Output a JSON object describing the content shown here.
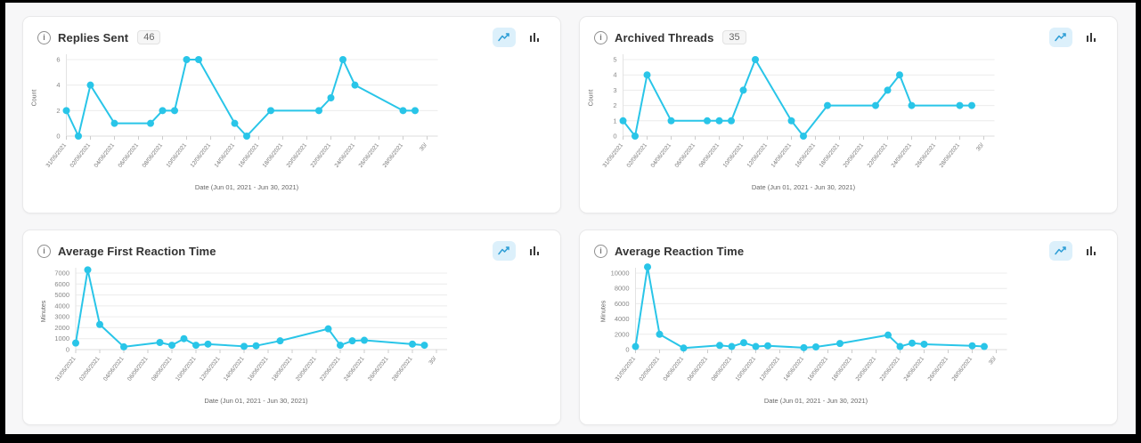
{
  "colors": {
    "line": "#29c5e8",
    "selected_toggle_bg": "#dcf0fb",
    "toggle_line_icon": "#2e9ed6",
    "toggle_bar_icon": "#3a3a3a",
    "panel_bg": "#ffffff",
    "page_bg": "#f7f7f8"
  },
  "icons": {
    "info_glyph": "i"
  },
  "chart_data": [
    {
      "type": "line",
      "title": "Replies Sent",
      "total": "46",
      "ylabel": "Count",
      "xlabel": "Date (Jun 01, 2021 - Jun 30, 2021)",
      "y_ticks": [
        0,
        2,
        4,
        6
      ],
      "ylim": [
        0,
        6
      ],
      "x_tick_labels": [
        "31/05/2021",
        "02/06/2021",
        "04/06/2021",
        "06/06/2021",
        "08/06/2021",
        "10/06/2021",
        "12/06/2021",
        "14/06/2021",
        "16/06/2021",
        "18/06/2021",
        "20/06/2021",
        "22/06/2021",
        "24/06/2021",
        "26/06/2021",
        "28/06/2021",
        "30/06/2021"
      ],
      "points": {
        "dates": [
          "31/05/2021",
          "01/06/2021",
          "02/06/2021",
          "04/06/2021",
          "07/06/2021",
          "08/06/2021",
          "09/06/2021",
          "10/06/2021",
          "11/06/2021",
          "14/06/2021",
          "15/06/2021",
          "17/06/2021",
          "21/06/2021",
          "22/06/2021",
          "23/06/2021",
          "24/06/2021",
          "28/06/2021",
          "29/06/2021"
        ],
        "days": [
          0,
          1,
          2,
          4,
          7,
          8,
          9,
          10,
          11,
          14,
          15,
          17,
          21,
          22,
          23,
          24,
          28,
          29
        ],
        "values": [
          2,
          0,
          4,
          1,
          1,
          2,
          2,
          6,
          6,
          1,
          0,
          2,
          2,
          3,
          6,
          4,
          2,
          2
        ]
      },
      "legend": "none",
      "grid": "horizontal"
    },
    {
      "type": "line",
      "title": "Archived Threads",
      "total": "35",
      "ylabel": "Count",
      "xlabel": "Date (Jun 01, 2021 - Jun 30, 2021)",
      "y_ticks": [
        0,
        1,
        2,
        3,
        4,
        5
      ],
      "ylim": [
        0,
        5
      ],
      "x_tick_labels": [
        "31/05/2021",
        "02/06/2021",
        "04/06/2021",
        "06/06/2021",
        "08/06/2021",
        "10/06/2021",
        "12/06/2021",
        "14/06/2021",
        "16/06/2021",
        "18/06/2021",
        "20/06/2021",
        "22/06/2021",
        "24/06/2021",
        "26/06/2021",
        "28/06/2021",
        "30/06/2021"
      ],
      "points": {
        "dates": [
          "31/05/2021",
          "01/06/2021",
          "02/06/2021",
          "04/06/2021",
          "07/06/2021",
          "08/06/2021",
          "09/06/2021",
          "10/06/2021",
          "11/06/2021",
          "14/06/2021",
          "15/06/2021",
          "17/06/2021",
          "21/06/2021",
          "22/06/2021",
          "23/06/2021",
          "24/06/2021",
          "28/06/2021",
          "29/06/2021"
        ],
        "days": [
          0,
          1,
          2,
          4,
          7,
          8,
          9,
          10,
          11,
          14,
          15,
          17,
          21,
          22,
          23,
          24,
          28,
          29
        ],
        "values": [
          1,
          0,
          4,
          1,
          1,
          1,
          1,
          3,
          5,
          1,
          0,
          2,
          2,
          3,
          4,
          2,
          2,
          2
        ]
      },
      "legend": "none",
      "grid": "horizontal"
    },
    {
      "type": "line",
      "title": "Average First Reaction Time",
      "total": "",
      "ylabel": "Minutes",
      "xlabel": "Date (Jun 01, 2021 - Jun 30, 2021)",
      "y_ticks": [
        0,
        1000,
        2000,
        3000,
        4000,
        5000,
        6000,
        7000
      ],
      "ylim": [
        0,
        7300
      ],
      "x_tick_labels": [
        "31/05/2021",
        "02/06/2021",
        "04/06/2021",
        "06/06/2021",
        "08/06/2021",
        "10/06/2021",
        "12/06/2021",
        "14/06/2021",
        "16/06/2021",
        "18/06/2021",
        "20/06/2021",
        "22/06/2021",
        "24/06/2021",
        "26/06/2021",
        "28/06/2021",
        "30/06/2021"
      ],
      "points": {
        "dates": [
          "31/05/2021",
          "01/06/2021",
          "02/06/2021",
          "04/06/2021",
          "07/06/2021",
          "08/06/2021",
          "09/06/2021",
          "10/06/2021",
          "11/06/2021",
          "14/06/2021",
          "15/06/2021",
          "17/06/2021",
          "21/06/2021",
          "22/06/2021",
          "23/06/2021",
          "24/06/2021",
          "28/06/2021",
          "29/06/2021"
        ],
        "days": [
          0,
          1,
          2,
          4,
          7,
          8,
          9,
          10,
          11,
          14,
          15,
          17,
          21,
          22,
          23,
          24,
          28,
          29
        ],
        "values": [
          600,
          7300,
          2300,
          250,
          650,
          400,
          1000,
          400,
          500,
          300,
          350,
          800,
          1900,
          400,
          800,
          850,
          500,
          400
        ]
      },
      "legend": "none",
      "grid": "horizontal"
    },
    {
      "type": "line",
      "title": "Average Reaction Time",
      "total": "",
      "ylabel": "Minutes",
      "xlabel": "Date (Jun 01, 2021 - Jun 30, 2021)",
      "y_ticks": [
        0,
        2000,
        4000,
        6000,
        8000,
        10000
      ],
      "ylim": [
        0,
        10800
      ],
      "x_tick_labels": [
        "31/05/2021",
        "02/06/2021",
        "04/06/2021",
        "06/06/2021",
        "08/06/2021",
        "10/06/2021",
        "12/06/2021",
        "14/06/2021",
        "16/06/2021",
        "18/06/2021",
        "20/06/2021",
        "22/06/2021",
        "24/06/2021",
        "26/06/2021",
        "28/06/2021",
        "30/06/2021"
      ],
      "points": {
        "dates": [
          "31/05/2021",
          "01/06/2021",
          "02/06/2021",
          "04/06/2021",
          "07/06/2021",
          "08/06/2021",
          "09/06/2021",
          "10/06/2021",
          "11/06/2021",
          "14/06/2021",
          "15/06/2021",
          "17/06/2021",
          "21/06/2021",
          "22/06/2021",
          "23/06/2021",
          "24/06/2021",
          "28/06/2021",
          "29/06/2021"
        ],
        "days": [
          0,
          1,
          2,
          4,
          7,
          8,
          9,
          10,
          11,
          14,
          15,
          17,
          21,
          22,
          23,
          24,
          28,
          29
        ],
        "values": [
          400,
          10800,
          2000,
          200,
          550,
          400,
          900,
          400,
          500,
          250,
          350,
          800,
          1900,
          400,
          850,
          700,
          500,
          400
        ]
      },
      "legend": "none",
      "grid": "horizontal"
    }
  ]
}
